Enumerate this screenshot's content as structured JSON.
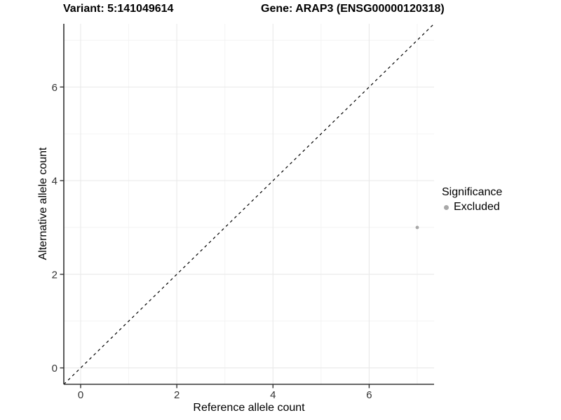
{
  "titles": {
    "variant": "Variant: 5:141049614",
    "gene": "Gene: ARAP3 (ENSG00000120318)"
  },
  "chart_data": {
    "type": "scatter",
    "title": "Variant: 5:141049614   Gene: ARAP3 (ENSG00000120318)",
    "xlabel": "Reference allele count",
    "ylabel": "Alternative allele count",
    "xlim": [
      -0.35,
      7.35
    ],
    "ylim": [
      -0.35,
      7.35
    ],
    "x_major_ticks": [
      0,
      2,
      4,
      6
    ],
    "y_major_ticks": [
      0,
      2,
      4,
      6
    ],
    "x_minor_gridlines": [
      1,
      3,
      5,
      7
    ],
    "y_minor_gridlines": [
      1,
      3,
      5,
      7
    ],
    "grid": true,
    "points": [
      {
        "x": 7,
        "y": 3,
        "significance": "Excluded"
      }
    ],
    "identity_line": {
      "type": "abline",
      "slope": 1,
      "intercept": 0,
      "style": "dashed",
      "from": [
        -0.35,
        -0.35
      ],
      "to": [
        7.35,
        7.35
      ]
    },
    "legend": {
      "title": "Significance",
      "position": "right",
      "entries": [
        {
          "label": "Excluded",
          "color": "#a8a8a8"
        }
      ]
    }
  },
  "colors": {
    "background": "#ffffff",
    "grid_major": "#e9e9e9",
    "grid_minor": "#f2f2f2",
    "axis_line": "#333333",
    "tick_label": "#333333",
    "identity_line": "#000000",
    "point": "#a8a8a8",
    "text": "#000000"
  }
}
